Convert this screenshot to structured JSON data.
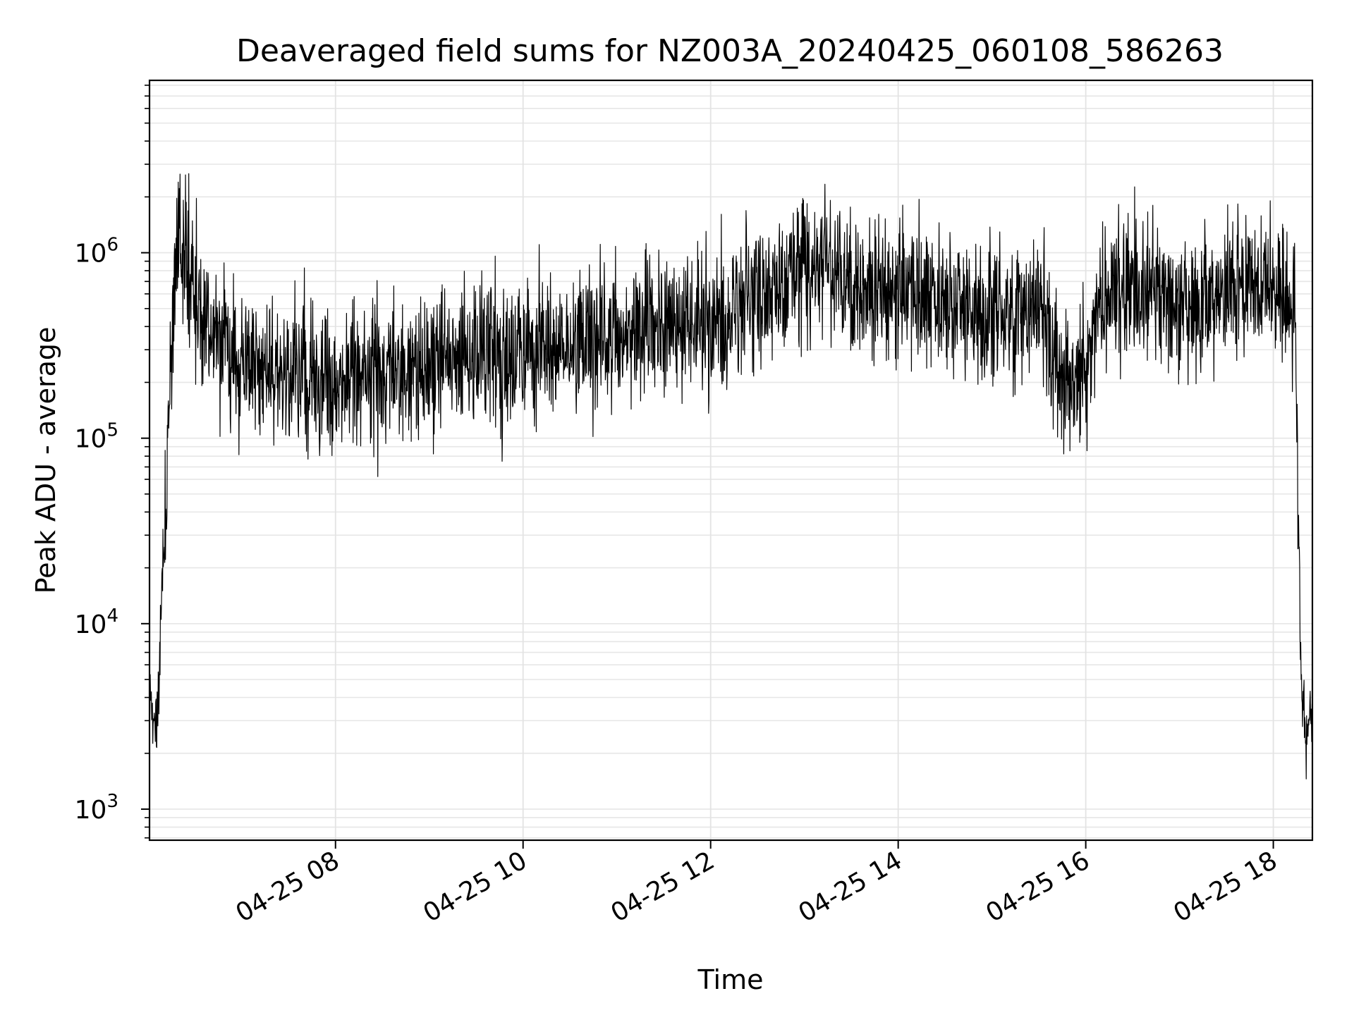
{
  "chart_data": {
    "type": "line",
    "title": "Deaveraged field sums for NZ003A_20240425_060108_586263",
    "xlabel": "Time",
    "ylabel": "Peak ADU - average",
    "yscale": "log",
    "ylim": [
      680,
      8500000
    ],
    "xlim": [
      "2024-04-25 06:01",
      "2024-04-25 18:25"
    ],
    "grid": true,
    "grid_minor": true,
    "line_color": "#000000",
    "x_ticks": [
      {
        "t": "2024-04-25 08:00",
        "label": "04-25 08"
      },
      {
        "t": "2024-04-25 10:00",
        "label": "04-25 10"
      },
      {
        "t": "2024-04-25 12:00",
        "label": "04-25 12"
      },
      {
        "t": "2024-04-25 14:00",
        "label": "04-25 14"
      },
      {
        "t": "2024-04-25 16:00",
        "label": "04-25 16"
      },
      {
        "t": "2024-04-25 18:00",
        "label": "04-25 18"
      }
    ],
    "y_ticks": [
      {
        "value": 1000,
        "base": "10",
        "exp": "3"
      },
      {
        "value": 10000,
        "base": "10",
        "exp": "4"
      },
      {
        "value": 100000,
        "base": "10",
        "exp": "5"
      },
      {
        "value": 1000000,
        "base": "10",
        "exp": "6"
      }
    ],
    "series": [
      {
        "x": [
          "2024-04-25 06:01",
          "2024-04-25 06:05",
          "2024-04-25 06:07",
          "2024-04-25 06:09",
          "2024-04-25 06:11",
          "2024-04-25 06:14",
          "2024-04-25 06:17",
          "2024-04-25 06:20",
          "2024-04-25 06:25",
          "2024-04-25 06:30",
          "2024-04-25 06:35",
          "2024-04-25 06:40",
          "2024-04-25 06:50",
          "2024-04-25 07:00",
          "2024-04-25 07:15",
          "2024-04-25 07:30",
          "2024-04-25 07:45",
          "2024-04-25 08:00",
          "2024-04-25 08:30",
          "2024-04-25 09:00",
          "2024-04-25 09:30",
          "2024-04-25 10:00",
          "2024-04-25 10:30",
          "2024-04-25 11:00",
          "2024-04-25 11:30",
          "2024-04-25 12:00",
          "2024-04-25 12:30",
          "2024-04-25 13:00",
          "2024-04-25 13:30",
          "2024-04-25 14:00",
          "2024-04-25 14:30",
          "2024-04-25 15:00",
          "2024-04-25 15:30",
          "2024-04-25 15:50",
          "2024-04-25 16:10",
          "2024-04-25 16:30",
          "2024-04-25 17:00",
          "2024-04-25 17:30",
          "2024-04-25 18:00",
          "2024-04-25 18:10",
          "2024-04-25 18:14",
          "2024-04-25 18:16",
          "2024-04-25 18:18",
          "2024-04-25 18:21",
          "2024-04-25 18:25"
        ],
        "values": [
          4000,
          2500,
          4500,
          15000,
          40000,
          200000,
          700000,
          1200000,
          1000000,
          550000,
          450000,
          350000,
          300000,
          250000,
          230000,
          220000,
          210000,
          200000,
          220000,
          240000,
          260000,
          280000,
          330000,
          380000,
          400000,
          420000,
          550000,
          900000,
          700000,
          650000,
          550000,
          450000,
          500000,
          170000,
          500000,
          700000,
          500000,
          600000,
          650000,
          650000,
          500000,
          30000,
          5000,
          2500,
          3500
        ]
      }
    ]
  }
}
